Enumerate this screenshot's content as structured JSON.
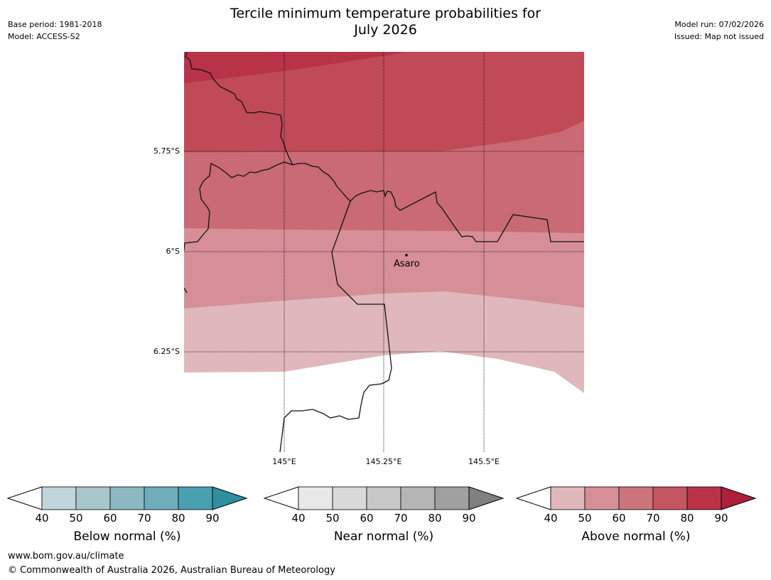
{
  "header": {
    "title_line1": "Tercile minimum temperature probabilities for",
    "title_line2": "July 2026",
    "base_period": "Base period: 1981-2018",
    "model": "Model: ACCESS-S2",
    "model_run": "Model run: 07/02/2026",
    "issued": "Issued: Map not issued"
  },
  "map": {
    "latitude_labels": [
      "5.75°S",
      "6°S",
      "6.25°S"
    ],
    "longitude_labels": [
      "145°E",
      "145.25°E",
      "145.5°E"
    ],
    "places": [
      {
        "name": "Asaro"
      }
    ],
    "band_colors": {
      "40-50": "#e0b8bc",
      "50-60": "#d68f97",
      "60-70": "#c96a74",
      "70-80": "#c04a57",
      "80-90": "#b83248"
    }
  },
  "colorbars": [
    {
      "label": "Below normal (%)",
      "ticks": [
        "40",
        "50",
        "60",
        "70",
        "80",
        "90"
      ],
      "colors": [
        "#bfd5db",
        "#a8c6cb",
        "#8bb8c2",
        "#6eadb9",
        "#4aa0b0",
        "#2f8fa0"
      ]
    },
    {
      "label": "Near normal (%)",
      "ticks": [
        "40",
        "50",
        "60",
        "70",
        "80",
        "90"
      ],
      "colors": [
        "#e8e8e8",
        "#d9d9d9",
        "#c8c8c8",
        "#b5b5b5",
        "#a0a0a0",
        "#808080"
      ]
    },
    {
      "label": "Above normal (%)",
      "ticks": [
        "40",
        "50",
        "60",
        "70",
        "80",
        "90"
      ],
      "colors": [
        "#e0b8bc",
        "#d68f97",
        "#cb747c",
        "#c45561",
        "#ba3248",
        "#ae1f3a"
      ]
    }
  ],
  "footer": {
    "url": "www.bom.gov.au/climate",
    "copyright": "© Commonwealth of Australia 2026, Australian Bureau of Meteorology"
  }
}
